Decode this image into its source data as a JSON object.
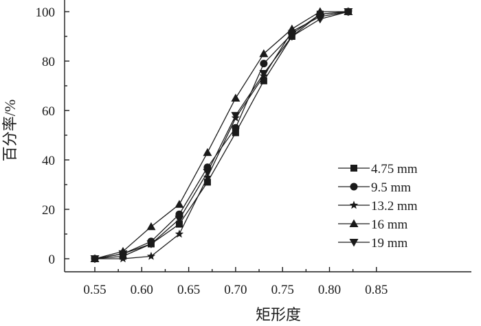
{
  "chart_data": {
    "type": "line",
    "xlabel": "矩形度",
    "ylabel": "百分率/%",
    "xlim": [
      0.55,
      0.85
    ],
    "ylim": [
      0,
      100
    ],
    "xticks": [
      "0.55",
      "0.60",
      "0.65",
      "0.70",
      "0.75",
      "0.80",
      "0.85"
    ],
    "yticks": [
      "0",
      "20",
      "40",
      "60",
      "80",
      "100"
    ],
    "grid": false,
    "legend_position": "lower-right",
    "x": [
      0.55,
      0.58,
      0.61,
      0.64,
      0.67,
      0.7,
      0.73,
      0.76,
      0.79,
      0.82
    ],
    "series": [
      {
        "name": "4.75 mm",
        "marker": "square",
        "values": [
          0,
          1,
          6,
          14,
          31,
          51,
          72,
          90,
          99,
          100
        ]
      },
      {
        "name": "9.5 mm",
        "marker": "circle",
        "values": [
          0,
          2,
          7,
          18,
          37,
          53,
          79,
          91,
          99,
          100
        ]
      },
      {
        "name": "13.2 mm",
        "marker": "star",
        "values": [
          0,
          0,
          1,
          10,
          33,
          57,
          74,
          92,
          98,
          100
        ]
      },
      {
        "name": "16 mm",
        "marker": "triangle-up",
        "values": [
          0,
          3,
          13,
          22,
          43,
          65,
          83,
          93,
          100,
          100
        ]
      },
      {
        "name": "19 mm",
        "marker": "triangle-down",
        "values": [
          0,
          2,
          6,
          16,
          35,
          58,
          75,
          90,
          97,
          100
        ]
      }
    ]
  }
}
